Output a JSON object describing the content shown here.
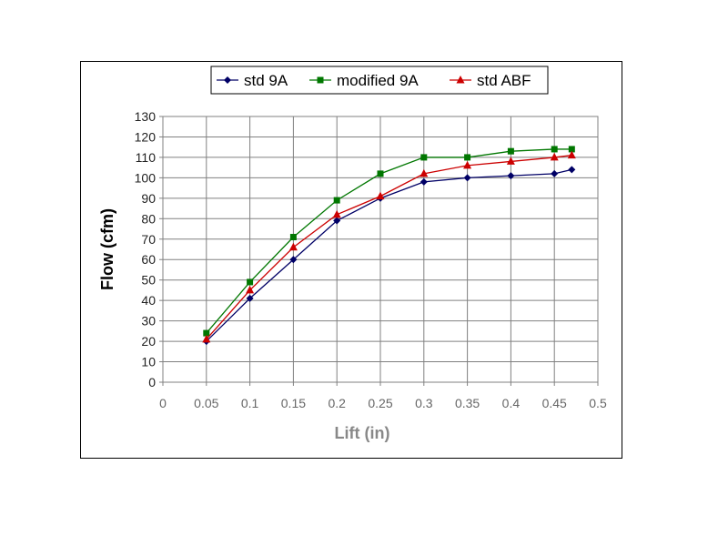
{
  "chart_data": {
    "type": "line",
    "title": "",
    "xlabel": "Lift (in)",
    "ylabel": "Flow (cfm)",
    "xlim": [
      0,
      0.5
    ],
    "ylim": [
      0,
      130
    ],
    "x_ticks": [
      "0",
      "0.05",
      "0.1",
      "0.15",
      "0.2",
      "0.25",
      "0.3",
      "0.35",
      "0.4",
      "0.45",
      "0.5"
    ],
    "y_ticks": [
      "0",
      "10",
      "20",
      "30",
      "40",
      "50",
      "60",
      "70",
      "80",
      "90",
      "100",
      "110",
      "120",
      "130"
    ],
    "grid": true,
    "legend_position": "top",
    "series": [
      {
        "name": "std 9A",
        "color": "#000066",
        "marker": "diamond",
        "x": [
          0.05,
          0.1,
          0.15,
          0.2,
          0.25,
          0.3,
          0.35,
          0.4,
          0.45,
          0.47
        ],
        "y": [
          20,
          41,
          60,
          79,
          90,
          98,
          100,
          101,
          102,
          104
        ]
      },
      {
        "name": "modified 9A",
        "color": "#007700",
        "marker": "square",
        "x": [
          0.05,
          0.1,
          0.15,
          0.2,
          0.25,
          0.3,
          0.35,
          0.4,
          0.45,
          0.47
        ],
        "y": [
          24,
          49,
          71,
          89,
          102,
          110,
          110,
          113,
          114,
          114
        ]
      },
      {
        "name": "std ABF",
        "color": "#cc0000",
        "marker": "triangle",
        "x": [
          0.05,
          0.1,
          0.15,
          0.2,
          0.25,
          0.3,
          0.35,
          0.4,
          0.45,
          0.47
        ],
        "y": [
          21,
          45,
          66,
          82,
          91,
          102,
          106,
          108,
          110,
          111
        ]
      }
    ]
  }
}
